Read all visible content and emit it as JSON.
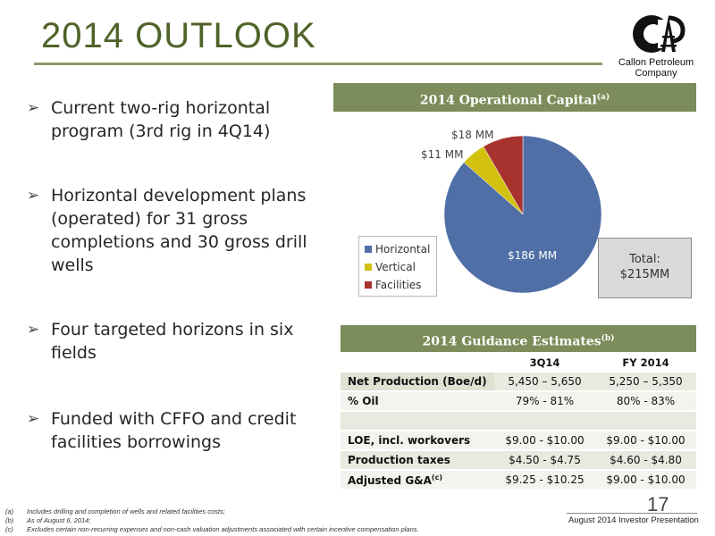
{
  "title": "2014 OUTLOOK",
  "logo": {
    "line1": "Callon Petroleum",
    "line2": "Company",
    "icon": "callon-cp-derrick-logo"
  },
  "bullets": [
    "Current two-rig horizontal program (3rd rig in 4Q14)",
    "Horizontal development plans (operated) for 31 gross completions and 30 gross drill wells",
    "Four targeted horizons in six fields",
    "Funded with CFFO and credit facilities borrowings"
  ],
  "bullet_icon": "arrow-bullet-icon",
  "capital_header": {
    "text": "2014 Operational Capital",
    "note": "(a)"
  },
  "chart_data": {
    "type": "pie",
    "title": "2014 Operational Capital(a)",
    "labels": [
      "Horizontal",
      "Vertical",
      "Facilities"
    ],
    "values": [
      186,
      11,
      18
    ],
    "data_labels": [
      "$186 MM",
      "$11 MM",
      "$18 MM"
    ],
    "colors": [
      "#4f6fa6",
      "#d2c20f",
      "#a8322d"
    ],
    "legend_position": "bottom-left",
    "total_label": [
      "Total:",
      "$215MM"
    ]
  },
  "guidance": {
    "header": "2014 Guidance Estimates",
    "note": "(b)",
    "columns": [
      "",
      "3Q14",
      "FY 2014"
    ],
    "rows": [
      {
        "label": "Net Production (Boe/d)",
        "q3": "5,450 – 5,650",
        "fy": "5,250 – 5,350"
      },
      {
        "label": "% Oil",
        "q3": "79% - 81%",
        "fy": "80% - 83%"
      },
      {
        "label": "",
        "q3": "",
        "fy": ""
      },
      {
        "label": "LOE, incl. workovers",
        "q3": "$9.00 - $10.00",
        "fy": "$9.00 - $10.00"
      },
      {
        "label": "Production taxes",
        "q3": "$4.50 - $4.75",
        "fy": "$4.60 - $4.80"
      },
      {
        "label": "Adjusted G&A",
        "note": "(c)",
        "q3": "$9.25 - $10.25",
        "fy": "$9.00 - $10.00"
      }
    ]
  },
  "page_number": "17",
  "presentation": "August 2014 Investor Presentation",
  "footnotes": [
    {
      "key": "(a)",
      "text": "Includes drilling and completion of wells and related facilities costs;"
    },
    {
      "key": "(b)",
      "text": "As of August 6, 2014;"
    },
    {
      "key": "(c)",
      "text": "Excludes certain non-recurring expenses and non-cash valuation adjustments associated with certain incentive compensation plans."
    }
  ]
}
